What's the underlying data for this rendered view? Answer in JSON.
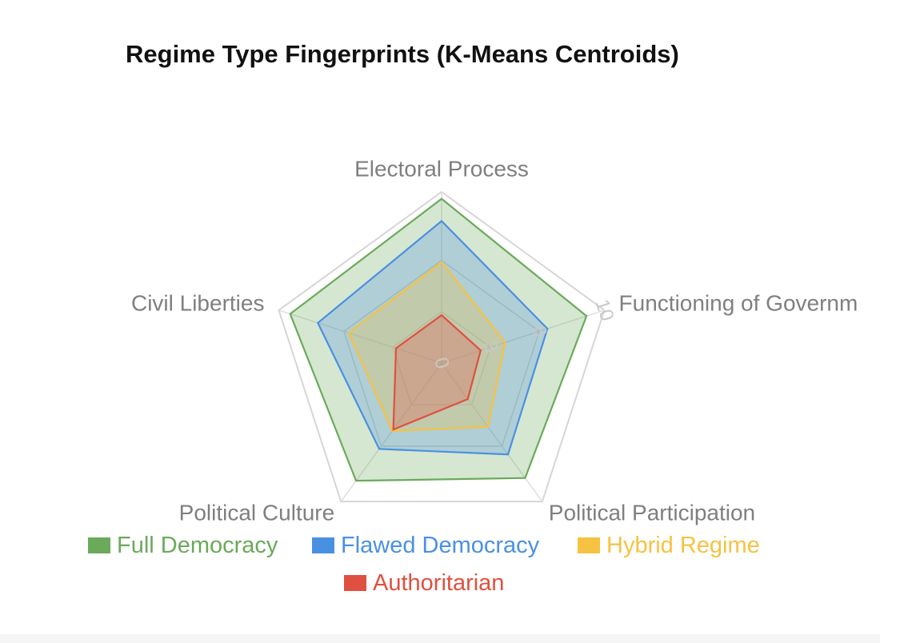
{
  "chart_data": {
    "type": "radar",
    "title": "Regime Type Fingerprints (K-Means Centroids)",
    "axes": [
      "Electoral Process",
      "Functioning of Government",
      "Political Participation",
      "Political Culture",
      "Civil Liberties"
    ],
    "axis_labels_shown": [
      "Electoral Process",
      "Functioning of Governm",
      "Political Participation",
      "Political Culture",
      "Civil Liberties"
    ],
    "r_range": [
      0,
      10
    ],
    "ticks": [
      0,
      3,
      6,
      10
    ],
    "grid": true,
    "legend_position": "bottom",
    "series": [
      {
        "name": "Full Democracy",
        "values": [
          9.6,
          8.9,
          8.3,
          8.5,
          9.3
        ],
        "color": "#6aaa5a"
      },
      {
        "name": "Flawed Democracy",
        "values": [
          8.3,
          6.5,
          6.6,
          6.2,
          7.6
        ],
        "color": "#4a90e2"
      },
      {
        "name": "Hybrid Regime",
        "values": [
          5.9,
          3.9,
          4.6,
          4.9,
          5.7
        ],
        "color": "#f5c242"
      },
      {
        "name": "Authoritarian",
        "values": [
          2.8,
          2.4,
          2.6,
          4.8,
          2.8
        ],
        "color": "#e05040"
      }
    ]
  }
}
